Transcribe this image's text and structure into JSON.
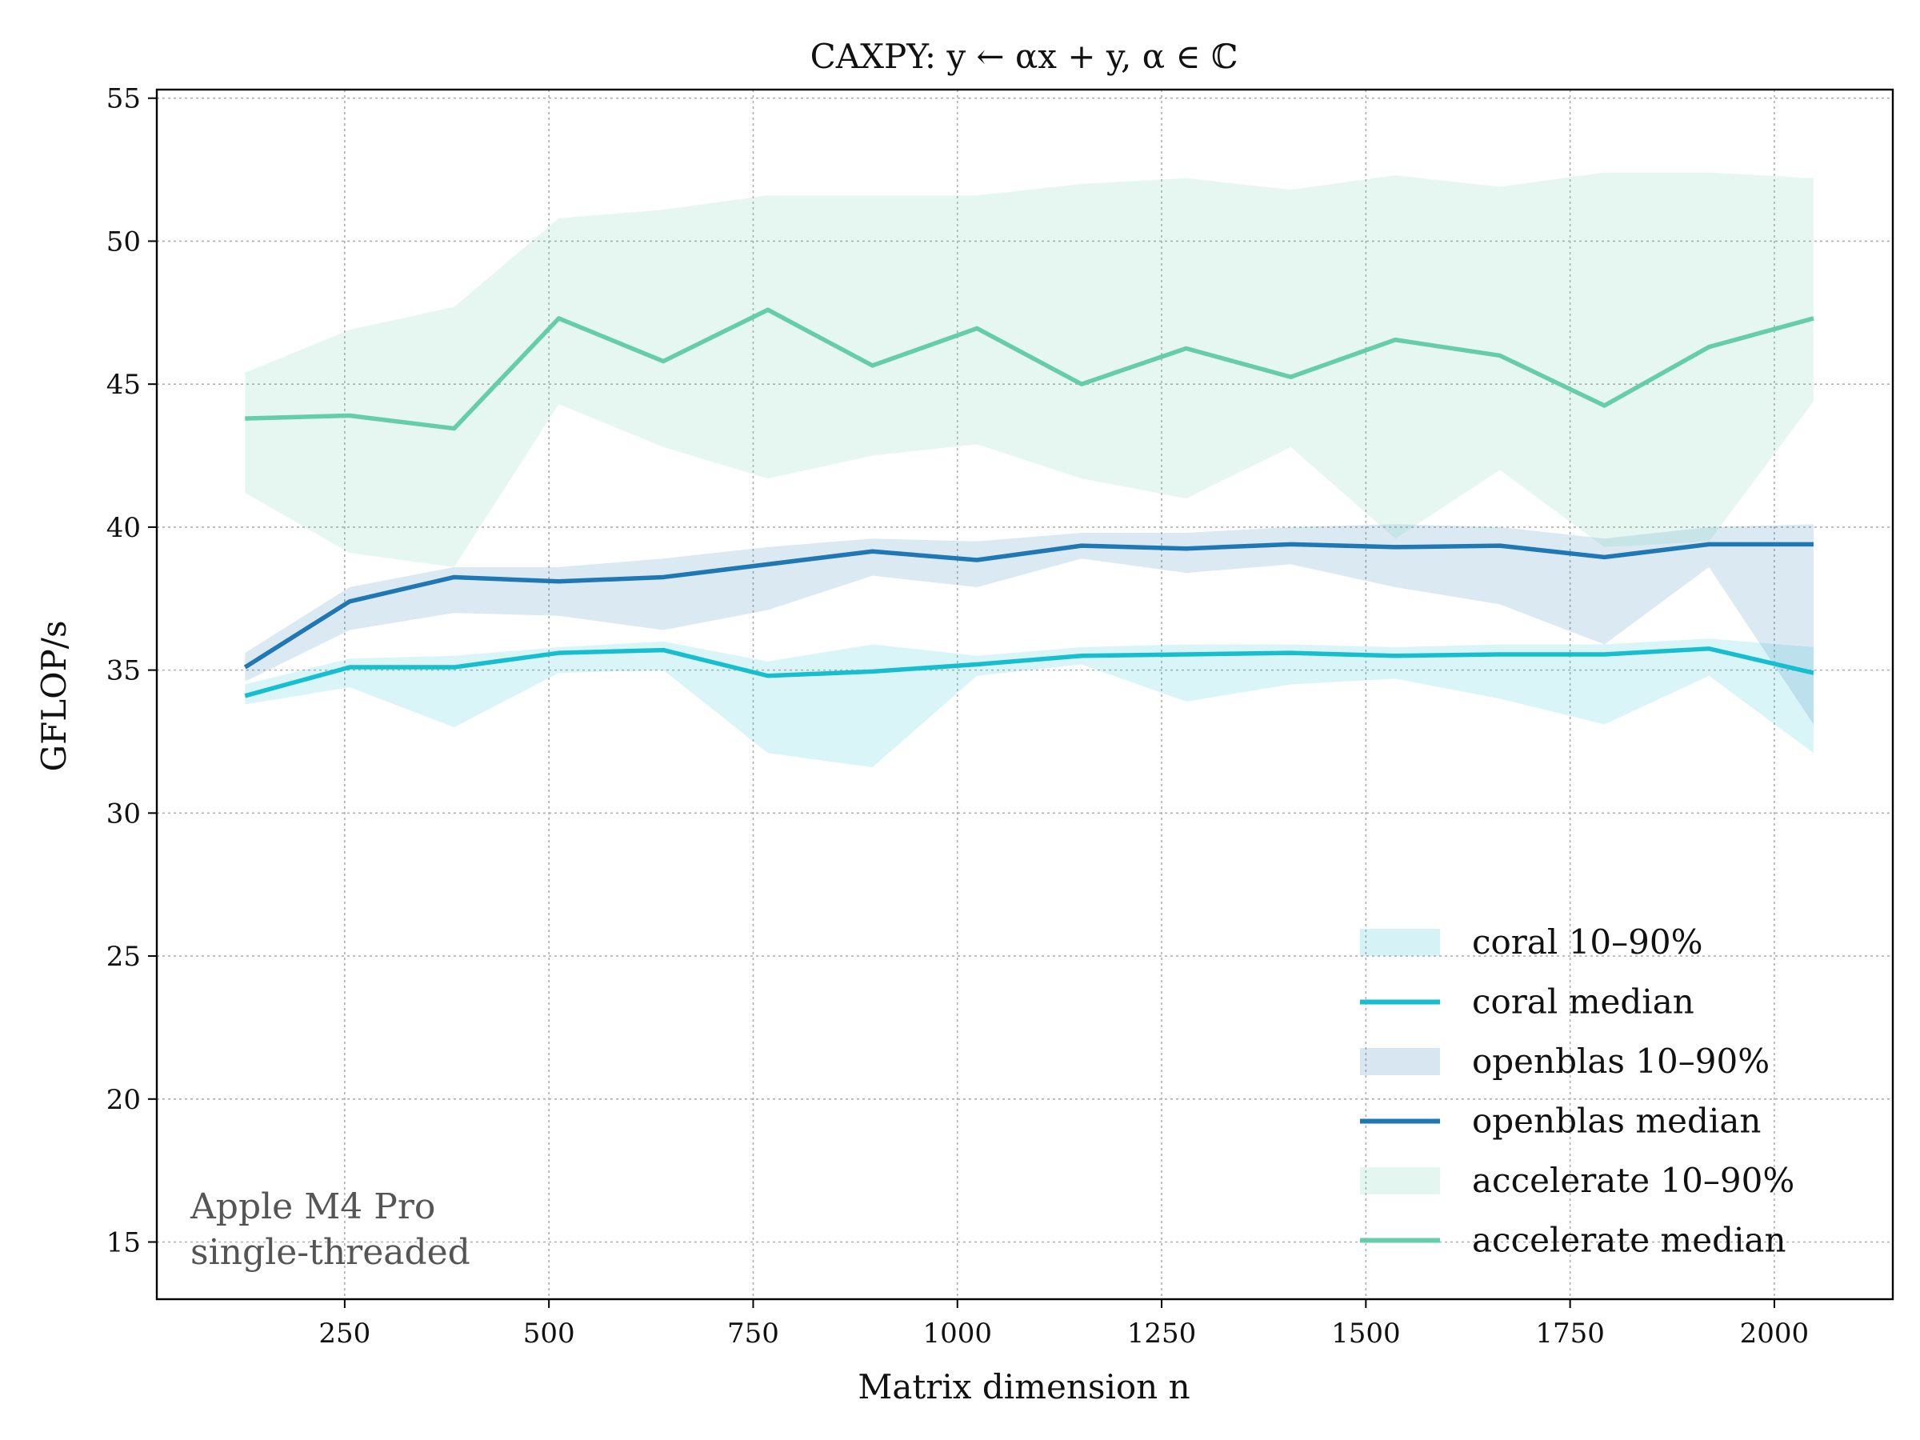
{
  "chart_data": {
    "type": "line",
    "title": "CAXPY: y ← αx + y,   α ∈ ℂ",
    "xlabel": "Matrix dimension n",
    "ylabel": "GFLOP/s",
    "xlim": [
      20,
      2145
    ],
    "ylim": [
      13,
      55.3
    ],
    "xticks": [
      250,
      500,
      750,
      1000,
      1250,
      1500,
      1750,
      2000
    ],
    "yticks": [
      15,
      20,
      25,
      30,
      35,
      40,
      45,
      50,
      55
    ],
    "grid": true,
    "legend_position": "lower-right",
    "annotation": [
      "Apple M4 Pro",
      "single-threaded"
    ],
    "x": [
      128,
      256,
      384,
      512,
      640,
      768,
      896,
      1024,
      1152,
      1280,
      1408,
      1536,
      1664,
      1792,
      1920,
      2048
    ],
    "series": [
      {
        "name": "coral",
        "color": "#17becf",
        "band_label": "coral 10–90%",
        "median_label": "coral median",
        "median": [
          34.1,
          35.1,
          35.1,
          35.6,
          35.7,
          34.8,
          34.95,
          35.2,
          35.5,
          35.55,
          35.6,
          35.5,
          35.55,
          35.55,
          35.75,
          34.9
        ],
        "p10": [
          33.8,
          34.4,
          33.0,
          34.9,
          35.0,
          32.1,
          31.6,
          34.8,
          35.2,
          33.9,
          34.5,
          34.7,
          34.0,
          33.1,
          34.8,
          32.1
        ],
        "p90": [
          34.5,
          35.4,
          35.5,
          35.8,
          36.0,
          35.3,
          35.9,
          35.5,
          35.8,
          35.9,
          35.9,
          35.8,
          35.9,
          35.9,
          36.1,
          35.8
        ]
      },
      {
        "name": "openblas",
        "color": "#1f77b4",
        "band_label": "openblas 10–90%",
        "median_label": "openblas median",
        "median": [
          35.1,
          37.4,
          38.25,
          38.1,
          38.25,
          38.7,
          39.15,
          38.85,
          39.35,
          39.25,
          39.4,
          39.3,
          39.35,
          38.95,
          39.4,
          39.4
        ],
        "p10": [
          34.6,
          36.4,
          37.0,
          36.9,
          36.4,
          37.1,
          38.3,
          37.9,
          38.9,
          38.4,
          38.7,
          37.9,
          37.3,
          35.9,
          38.6,
          33.1
        ],
        "p90": [
          35.6,
          37.9,
          38.6,
          38.6,
          38.9,
          39.3,
          39.6,
          39.5,
          39.8,
          39.8,
          40.0,
          40.1,
          40.0,
          39.6,
          40.0,
          40.1
        ]
      },
      {
        "name": "accelerate",
        "color": "#66cdaa",
        "band_label": "accelerate 10–90%",
        "median_label": "accelerate median",
        "median": [
          43.8,
          43.9,
          43.45,
          47.3,
          45.8,
          47.6,
          45.65,
          46.95,
          45.0,
          46.25,
          45.25,
          46.55,
          46.0,
          44.25,
          46.3,
          47.3
        ],
        "p10": [
          41.2,
          39.1,
          38.6,
          44.3,
          42.8,
          41.7,
          42.5,
          42.9,
          41.7,
          41.0,
          42.8,
          39.6,
          42.0,
          39.3,
          39.5,
          44.4
        ],
        "p90": [
          45.4,
          46.9,
          47.7,
          50.8,
          51.1,
          51.6,
          51.6,
          51.6,
          52.0,
          52.2,
          51.8,
          52.3,
          51.9,
          52.4,
          52.4,
          52.2
        ]
      }
    ]
  }
}
